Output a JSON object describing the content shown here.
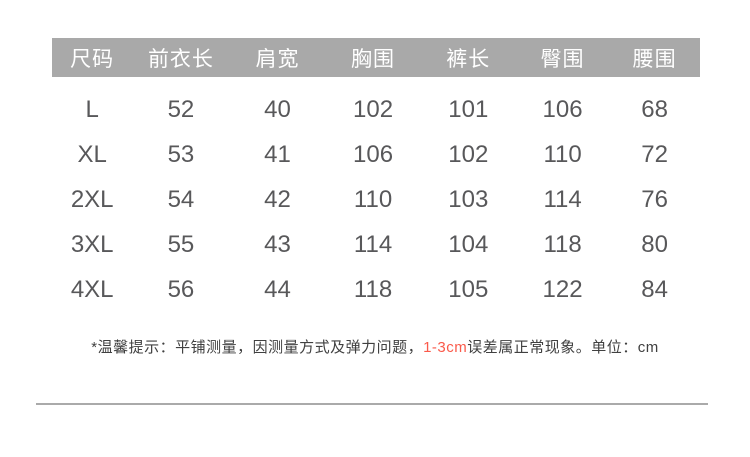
{
  "chart_data": {
    "type": "table",
    "title": "",
    "columns": [
      "尺码",
      "前衣长",
      "肩宽",
      "胸围",
      "裤长",
      "臀围",
      "腰围"
    ],
    "rows": [
      [
        "L",
        52,
        40,
        102,
        101,
        106,
        68
      ],
      [
        "XL",
        53,
        41,
        106,
        102,
        110,
        72
      ],
      [
        "2XL",
        54,
        42,
        110,
        103,
        114,
        76
      ],
      [
        "3XL",
        55,
        43,
        114,
        104,
        118,
        80
      ],
      [
        "4XL",
        56,
        44,
        118,
        105,
        122,
        84
      ]
    ],
    "unit": "cm"
  },
  "table": {
    "headers": [
      "尺码",
      "前衣长",
      "肩宽",
      "胸围",
      "裤长",
      "臀围",
      "腰围"
    ],
    "rows": [
      {
        "size": "L",
        "values": [
          "52",
          "40",
          "102",
          "101",
          "106",
          "68"
        ]
      },
      {
        "size": "XL",
        "values": [
          "53",
          "41",
          "106",
          "102",
          "110",
          "72"
        ]
      },
      {
        "size": "2XL",
        "values": [
          "54",
          "42",
          "110",
          "103",
          "114",
          "76"
        ]
      },
      {
        "size": "3XL",
        "values": [
          "55",
          "43",
          "114",
          "104",
          "118",
          "80"
        ]
      },
      {
        "size": "4XL",
        "values": [
          "56",
          "44",
          "118",
          "105",
          "122",
          "84"
        ]
      }
    ]
  },
  "footnote": {
    "prefix": "*温馨提示：平铺测量，因测量方式及弹力问题，",
    "highlight": "1-3cm",
    "suffix": "误差属正常现象。单位：cm"
  },
  "colors": {
    "header_bg": "#a9a9a9",
    "header_text": "#ffffff",
    "body_text": "#58585a",
    "footnote_text": "#404040",
    "highlight_text": "#fa5a4b",
    "divider": "#aaaaaa"
  }
}
